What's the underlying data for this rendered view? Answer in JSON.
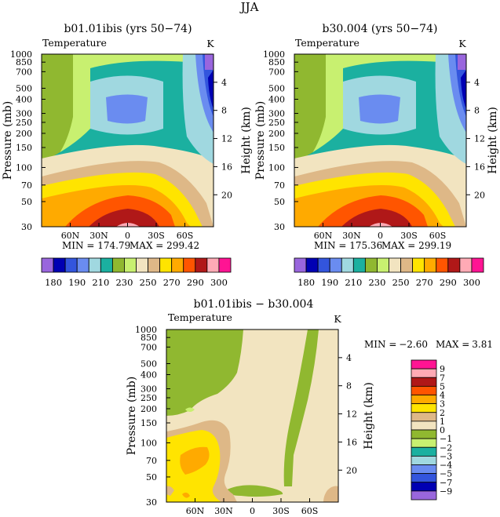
{
  "figure_title": "JJA",
  "chart_data": [
    {
      "type": "heatmap",
      "title": "b01.01ibis (yrs 50−74)",
      "left_label": "Temperature",
      "right_label": "K",
      "xlabel": "",
      "ylabel": "Pressure (mb)",
      "y2label": "Height (km)",
      "xticks": [
        "60N",
        "30N",
        "0",
        "30S",
        "60S"
      ],
      "yticks": [
        "30",
        "50",
        "70",
        "100",
        "150",
        "200",
        "250",
        "300",
        "400",
        "500",
        "700",
        "850",
        "1000"
      ],
      "y2ticks": [
        "20",
        "16",
        "12",
        "8",
        "4"
      ],
      "xlim": [
        90,
        -90
      ],
      "ylim": [
        1000,
        30
      ],
      "min_label": "MIN = 174.79",
      "max_label": "MAX = 299.42",
      "stats": {
        "min": 174.79,
        "max": 299.42
      },
      "colorbar": {
        "orientation": "horizontal",
        "tick_labels": [
          "180",
          "190",
          "210",
          "230",
          "250",
          "270",
          "290",
          "300"
        ],
        "colors": [
          "#9966dd",
          "#0000b3",
          "#3355dd",
          "#6a8cf0",
          "#a0d8e0",
          "#1bb0a0",
          "#90b830",
          "#c8f070",
          "#f2e4c0",
          "#deb887",
          "#ffe400",
          "#ffaa00",
          "#ff5500",
          "#b01818",
          "#ffaab5",
          "#ff1493"
        ]
      }
    },
    {
      "type": "heatmap",
      "title": "b30.004 (yrs 50−74)",
      "left_label": "Temperature",
      "right_label": "K",
      "xlabel": "",
      "ylabel": "Pressure (mb)",
      "y2label": "Height (km)",
      "xticks": [
        "60N",
        "30N",
        "0",
        "30S",
        "60S"
      ],
      "yticks": [
        "30",
        "50",
        "70",
        "100",
        "150",
        "200",
        "250",
        "300",
        "400",
        "500",
        "700",
        "850",
        "1000"
      ],
      "y2ticks": [
        "20",
        "16",
        "12",
        "8",
        "4"
      ],
      "xlim": [
        90,
        -90
      ],
      "ylim": [
        1000,
        30
      ],
      "min_label": "MIN = 175.36",
      "max_label": "MAX = 299.19",
      "stats": {
        "min": 175.36,
        "max": 299.19
      },
      "colorbar": {
        "orientation": "horizontal",
        "tick_labels": [
          "180",
          "190",
          "210",
          "230",
          "250",
          "270",
          "290",
          "300"
        ],
        "colors": [
          "#9966dd",
          "#0000b3",
          "#3355dd",
          "#6a8cf0",
          "#a0d8e0",
          "#1bb0a0",
          "#90b830",
          "#c8f070",
          "#f2e4c0",
          "#deb887",
          "#ffe400",
          "#ffaa00",
          "#ff5500",
          "#b01818",
          "#ffaab5",
          "#ff1493"
        ]
      }
    },
    {
      "type": "heatmap",
      "title": "b01.01ibis − b30.004",
      "left_label": "Temperature",
      "right_label": "K",
      "xlabel": "",
      "ylabel": "Pressure (mb)",
      "y2label": "Height (km)",
      "xticks": [
        "60N",
        "30N",
        "0",
        "30S",
        "60S"
      ],
      "yticks": [
        "30",
        "50",
        "70",
        "100",
        "150",
        "200",
        "250",
        "300",
        "400",
        "500",
        "700",
        "850",
        "1000"
      ],
      "y2ticks": [
        "20",
        "16",
        "12",
        "8",
        "4"
      ],
      "xlim": [
        90,
        -90
      ],
      "ylim": [
        1000,
        30
      ],
      "min_label": "MIN =",
      "min_value": "−2.60",
      "max_label": "MAX =",
      "max_value": "3.81",
      "stats": {
        "min": -2.6,
        "max": 3.81
      },
      "colorbar": {
        "orientation": "vertical",
        "tick_labels": [
          "9",
          "7",
          "5",
          "4",
          "3",
          "2",
          "1",
          "0",
          "−1",
          "−2",
          "−3",
          "−4",
          "−5",
          "−7",
          "−9"
        ],
        "colors": [
          "#ff1493",
          "#ffaab5",
          "#b01818",
          "#ff5500",
          "#ffaa00",
          "#ffe400",
          "#deb887",
          "#f2e4c0",
          "#90b830",
          "#c8f070",
          "#1bb0a0",
          "#a0d8e0",
          "#6a8cf0",
          "#3355dd",
          "#0000b3",
          "#9966dd"
        ]
      }
    }
  ]
}
